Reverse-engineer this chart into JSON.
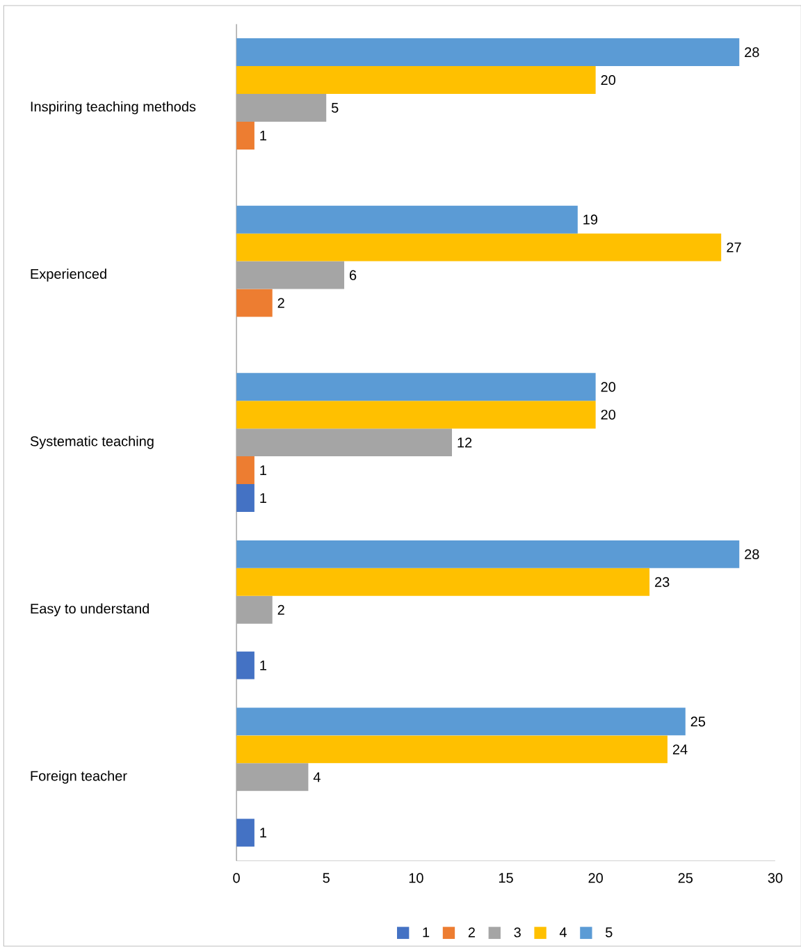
{
  "chart_data": {
    "type": "bar",
    "orientation": "horizontal",
    "categories": [
      "Inspiring teaching methods",
      "Experienced",
      "Systematic teaching",
      "Easy to understand",
      "Foreign teacher"
    ],
    "series": [
      {
        "name": "1",
        "color": "#4472c4",
        "values": [
          null,
          null,
          1,
          1,
          1
        ]
      },
      {
        "name": "2",
        "color": "#ed7d31",
        "values": [
          1,
          2,
          1,
          null,
          null
        ]
      },
      {
        "name": "3",
        "color": "#a5a5a5",
        "values": [
          5,
          6,
          12,
          2,
          4
        ]
      },
      {
        "name": "4",
        "color": "#ffc000",
        "values": [
          20,
          27,
          20,
          23,
          24
        ]
      },
      {
        "name": "5",
        "color": "#5b9bd5",
        "values": [
          28,
          19,
          20,
          28,
          25
        ]
      }
    ],
    "xlim": [
      0,
      30
    ],
    "xticks": [
      0,
      5,
      10,
      15,
      20,
      25,
      30
    ],
    "data_labels": true,
    "grid": false,
    "legend": "bottom"
  }
}
